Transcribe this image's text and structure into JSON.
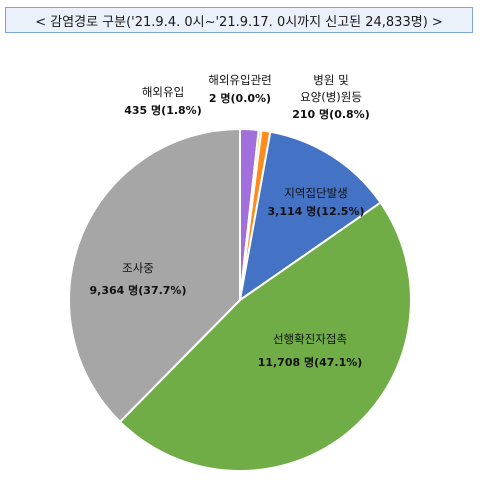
{
  "title": "< 감염경로 구분('21.9.4. 0시~'21.9.17. 0시까지 신고된 24,833명) >",
  "chart_data": {
    "type": "pie",
    "total": 24833,
    "unit": "명",
    "slices": [
      {
        "label": "해외유입",
        "value": 435,
        "value_text": "435 명(1.8%)",
        "color": "#a270dd"
      },
      {
        "label": "해외유입관련",
        "value": 2,
        "value_text": "2 명(0.0%)",
        "color": "#ffc000"
      },
      {
        "label": "병원 및 요양(병)원등",
        "label_lines": [
          "병원 및",
          "요양(병)원등"
        ],
        "value": 210,
        "value_text": "210 명(0.8%)",
        "color": "#ff8c1a"
      },
      {
        "label": "지역집단발생",
        "value": 3114,
        "value_text": "3,114 명(12.5%)",
        "color": "#4472c4"
      },
      {
        "label": "선행확진자접촉",
        "value": 11708,
        "value_text": "11,708 명(47.1%)",
        "color": "#70ad47"
      },
      {
        "label": "조사중",
        "value": 9364,
        "value_text": "9,364 명(37.7%)",
        "color": "#a6a6a6"
      }
    ]
  }
}
